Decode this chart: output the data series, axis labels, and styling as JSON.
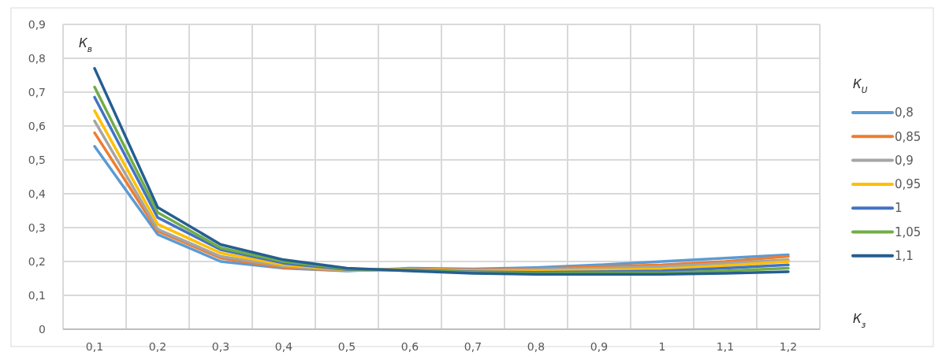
{
  "chart_data": {
    "type": "line",
    "xlabel": "К$_{з}$",
    "ylabel": "К$_{в}$",
    "legend_title": "К$_{U}$",
    "categories": [
      "0,1",
      "0,2",
      "0,3",
      "0,4",
      "0,5",
      "0,6",
      "0,7",
      "0,8",
      "0,9",
      "1",
      "1,1",
      "1,2"
    ],
    "ylim": [
      0,
      0.9
    ],
    "yticks": [
      0,
      {
        "value": 0.1,
        "label": "0,1"
      },
      {
        "value": 0.2,
        "label": "0,2"
      },
      {
        "value": 0.3,
        "label": "0,3"
      },
      {
        "value": 0.4,
        "label": "0,4"
      },
      {
        "value": 0.5,
        "label": "0,5"
      },
      {
        "value": 0.6,
        "label": "0,6"
      },
      {
        "value": 0.7,
        "label": "0,7"
      },
      {
        "value": 0.8,
        "label": "0,8"
      },
      {
        "value": 0.9,
        "label": "0,9"
      }
    ],
    "grid": true,
    "legend": "right",
    "marker": "none",
    "line_style": "solid",
    "series": [
      {
        "name": "0,8",
        "color": "#5b9bd5",
        "values": [
          0.54,
          0.28,
          0.2,
          0.18,
          0.172,
          0.18,
          0.178,
          0.182,
          0.19,
          0.2,
          0.21,
          0.22
        ]
      },
      {
        "name": "0,85",
        "color": "#ed7d31",
        "values": [
          0.58,
          0.29,
          0.21,
          0.182,
          0.173,
          0.178,
          0.176,
          0.178,
          0.185,
          0.19,
          0.2,
          0.215
        ]
      },
      {
        "name": "0,9",
        "color": "#a5a5a5",
        "values": [
          0.615,
          0.295,
          0.215,
          0.186,
          0.174,
          0.177,
          0.174,
          0.176,
          0.18,
          0.185,
          0.195,
          0.205
        ]
      },
      {
        "name": "0,95",
        "color": "#ffc000",
        "values": [
          0.645,
          0.31,
          0.225,
          0.19,
          0.175,
          0.176,
          0.172,
          0.172,
          0.175,
          0.178,
          0.188,
          0.2
        ]
      },
      {
        "name": "1",
        "color": "#4472c4",
        "values": [
          0.685,
          0.33,
          0.235,
          0.195,
          0.176,
          0.175,
          0.17,
          0.168,
          0.17,
          0.172,
          0.18,
          0.19
        ]
      },
      {
        "name": "1,05",
        "color": "#70ad47",
        "values": [
          0.715,
          0.345,
          0.24,
          0.2,
          0.178,
          0.174,
          0.168,
          0.165,
          0.166,
          0.166,
          0.172,
          0.18
        ]
      },
      {
        "name": "1,1",
        "color": "#255e91",
        "values": [
          0.77,
          0.36,
          0.25,
          0.205,
          0.18,
          0.172,
          0.165,
          0.162,
          0.162,
          0.162,
          0.165,
          0.17
        ]
      }
    ]
  }
}
